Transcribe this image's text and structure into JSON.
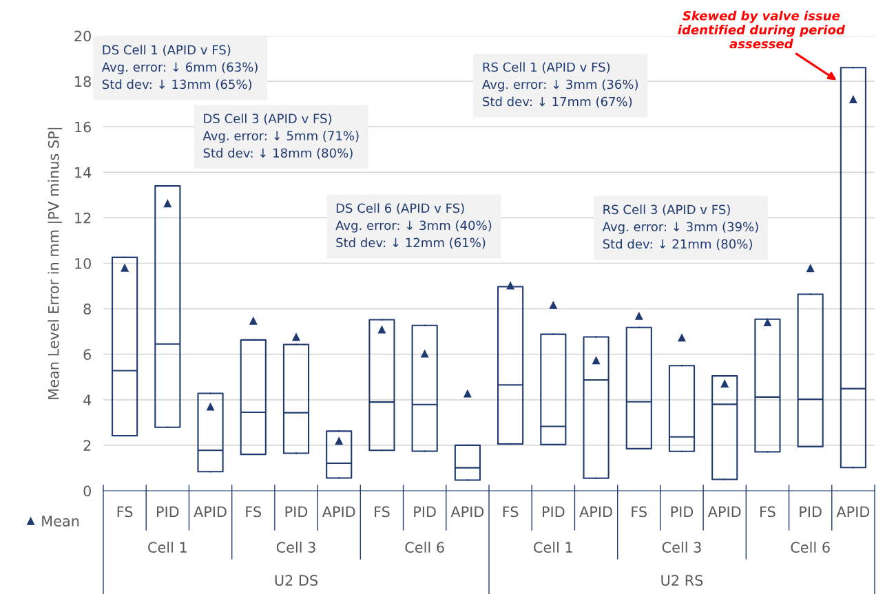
{
  "chart_data": {
    "type": "box",
    "ylabel": "Mean Level Error in mm |PV minus SP|",
    "categories": [
      "FS",
      "PID",
      "APID",
      "FS",
      "PID",
      "APID",
      "FS",
      "PID",
      "APID",
      "FS",
      "PID",
      "APID",
      "FS",
      "PID",
      "APID",
      "FS",
      "PID",
      "APID"
    ],
    "series": [
      {
        "name": "Mean",
        "color": "#1f3a70",
        "boxes": [
          {
            "low": 2.42,
            "q1": 2.42,
            "median": 5.28,
            "q3": 10.26,
            "high": 10.26,
            "mean": 9.8
          },
          {
            "low": 2.79,
            "q1": 2.79,
            "median": 6.45,
            "q3": 13.4,
            "high": 13.4,
            "mean": 12.63
          },
          {
            "low": 0.84,
            "q1": 0.84,
            "median": 1.78,
            "q3": 4.28,
            "high": 4.28,
            "mean": 3.69
          },
          {
            "low": 1.6,
            "q1": 1.6,
            "median": 3.45,
            "q3": 6.63,
            "high": 6.63,
            "mean": 7.47
          },
          {
            "low": 1.65,
            "q1": 1.65,
            "median": 3.43,
            "q3": 6.43,
            "high": 6.43,
            "mean": 6.76
          },
          {
            "low": 0.56,
            "q1": 0.56,
            "median": 1.21,
            "q3": 2.62,
            "high": 2.62,
            "mean": 2.19
          },
          {
            "low": 1.78,
            "q1": 1.78,
            "median": 3.9,
            "q3": 7.52,
            "high": 7.52,
            "mean": 7.08
          },
          {
            "low": 1.74,
            "q1": 1.74,
            "median": 3.79,
            "q3": 7.27,
            "high": 7.27,
            "mean": 6.02
          },
          {
            "low": 0.47,
            "q1": 0.47,
            "median": 1.01,
            "q3": 2.0,
            "high": 2.0,
            "mean": 4.27
          },
          {
            "low": 2.06,
            "q1": 2.06,
            "median": 4.65,
            "q3": 8.97,
            "high": 8.97,
            "mean": 9.02
          },
          {
            "low": 2.03,
            "q1": 2.03,
            "median": 2.83,
            "q3": 6.88,
            "high": 6.88,
            "mean": 8.16
          },
          {
            "low": 0.55,
            "q1": 0.55,
            "median": 4.87,
            "q3": 6.76,
            "high": 6.76,
            "mean": 5.73
          },
          {
            "low": 1.85,
            "q1": 1.85,
            "median": 3.91,
            "q3": 7.18,
            "high": 7.18,
            "mean": 7.68
          },
          {
            "low": 1.73,
            "q1": 1.73,
            "median": 2.37,
            "q3": 5.5,
            "high": 5.5,
            "mean": 6.73
          },
          {
            "low": 0.5,
            "q1": 0.5,
            "median": 3.8,
            "q3": 5.05,
            "high": 5.05,
            "mean": 4.71
          },
          {
            "low": 1.71,
            "q1": 1.71,
            "median": 4.12,
            "q3": 7.54,
            "high": 7.54,
            "mean": 7.4
          },
          {
            "low": 1.94,
            "q1": 1.94,
            "median": 4.02,
            "q3": 8.64,
            "high": 8.64,
            "mean": 9.78
          },
          {
            "low": 1.02,
            "q1": 1.02,
            "median": 4.49,
            "q3": 18.6,
            "high": 18.6,
            "mean": 17.2
          }
        ]
      }
    ],
    "ylim": [
      0,
      20
    ],
    "yticks": [
      0,
      2,
      4,
      6,
      8,
      10,
      12,
      14,
      16,
      18,
      20
    ],
    "grid": "y",
    "legend": "bottom left",
    "marker": "triangle",
    "annotations": [
      "Cell 1",
      "Cell 3",
      "Cell 6",
      "Cell 1",
      "Cell 3",
      "Cell 6",
      "U2 DS",
      "U2 RS",
      "DS Cell 1 (APID v FS)\nAvg. error: ↓ 6mm (63%)\nStd dev: ↓ 13mm (65%)",
      "DS Cell 3 (APID v FS)\nAvg. error: ↓ 5mm (71%)\nStd dev: ↓ 18mm (80%)",
      "DS Cell 6 (APID v FS)\nAvg. error: ↓ 3mm (40%)\nStd dev: ↓ 12mm (61%)",
      "RS Cell 1 (APID v FS)\nAvg. error: ↓ 3mm (36%)\nStd dev: ↓ 17mm (67%)",
      "RS Cell 3 (APID v FS)\nAvg. error: ↓ 3mm (39%)\nStd dev: ↓ 21mm (80%)",
      "Skewed by valve issue\nidentified during period\nassessed"
    ]
  }
}
